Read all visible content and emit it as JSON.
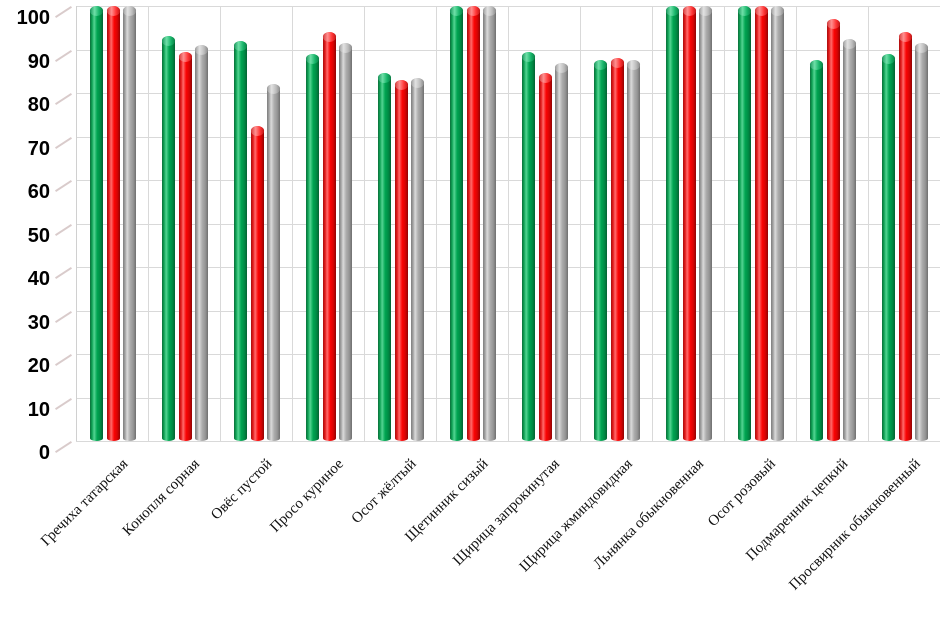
{
  "chart": {
    "background": "#ffffff",
    "gridline_color": "#d9d9d9",
    "tick_mark_color": "#d9cbcb",
    "axis_label_color": "#000000"
  },
  "chart_data": {
    "type": "bar",
    "subtype": "3d-cylinder-clustered",
    "title": "",
    "xlabel": "",
    "ylabel": "",
    "legend_position": "none",
    "grid": true,
    "x_tick_rotation": 45,
    "ylim": [
      0,
      100
    ],
    "y_ticks": [
      0,
      10,
      20,
      30,
      40,
      50,
      60,
      70,
      80,
      90,
      100
    ],
    "categories": [
      "Гречиха татарская",
      "Конопля сорная",
      "Овёс пустой",
      "Просо куриное",
      "Осот жёлтый",
      "Щетинник сизый",
      "Щирица запрокинутая",
      "Щирица жминдовидная",
      "Льнянка обыкновенная",
      "Осот розовый",
      "Подмаренник цепкий",
      "Просвирник обыкновенный"
    ],
    "series": [
      {
        "name": "series-green",
        "color": "#00A551",
        "values": [
          100,
          93,
          92,
          89,
          84.5,
          100,
          89.5,
          87.5,
          100,
          100,
          87.5,
          89
        ]
      },
      {
        "name": "series-red",
        "color": "#FF0000",
        "values": [
          100,
          89.5,
          72.5,
          94,
          83,
          100,
          84.5,
          88,
          100,
          100,
          97,
          94
        ]
      },
      {
        "name": "series-gray",
        "color": "#ABABAB",
        "values": [
          100,
          91,
          82,
          91.5,
          83.5,
          100,
          87,
          87.5,
          100,
          100,
          92.5,
          91.5
        ]
      }
    ]
  }
}
